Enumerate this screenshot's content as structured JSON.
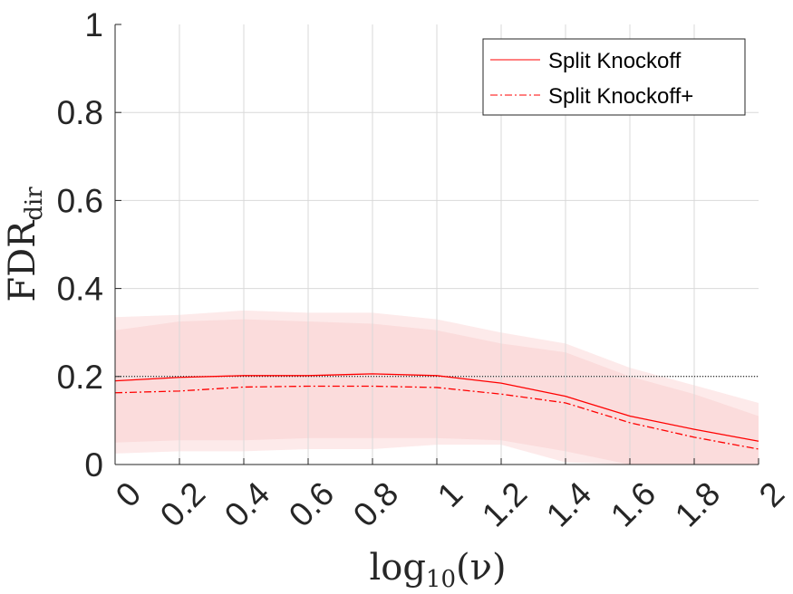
{
  "chart_data": {
    "type": "line",
    "title": "",
    "xlabel": "log10(ν)",
    "xlabel_parts": {
      "base": "log",
      "sub": "10",
      "arg": "(ν)"
    },
    "ylabel": "FDR_dir",
    "ylabel_parts": {
      "base": "FDR",
      "sub": "dir"
    },
    "xlim": [
      0,
      2
    ],
    "ylim": [
      0,
      1
    ],
    "grid": true,
    "legend_position": "top-right",
    "x_ticks": [
      0,
      0.2,
      0.4,
      0.6,
      0.8,
      1,
      1.2,
      1.4,
      1.6,
      1.8,
      2
    ],
    "x_tick_labels": [
      "0",
      "0.2",
      "0.4",
      "0.6",
      "0.8",
      "1",
      "1.2",
      "1.4",
      "1.6",
      "1.8",
      "2"
    ],
    "y_ticks": [
      0,
      0.2,
      0.4,
      0.6,
      0.8,
      1
    ],
    "y_tick_labels": [
      "0",
      "0.2",
      "0.4",
      "0.6",
      "0.8",
      "1"
    ],
    "x": [
      0,
      0.2,
      0.4,
      0.6,
      0.8,
      1,
      1.2,
      1.4,
      1.6,
      1.8,
      2
    ],
    "reference_line": {
      "y": 0.2,
      "style": "dotted",
      "color": "#000000"
    },
    "series": [
      {
        "name": "Split Knockoff",
        "style": "solid",
        "color": "#ff0000",
        "values": [
          0.19,
          0.198,
          0.202,
          0.202,
          0.206,
          0.202,
          0.185,
          0.155,
          0.11,
          0.08,
          0.053
        ],
        "band_upper": [
          0.305,
          0.325,
          0.33,
          0.325,
          0.32,
          0.305,
          0.275,
          0.255,
          0.2,
          0.16,
          0.11
        ],
        "band_lower": [
          0.05,
          0.055,
          0.055,
          0.06,
          0.06,
          0.06,
          0.055,
          0.03,
          0.0,
          0.0,
          0.0
        ],
        "band_color": "#fbdcdc"
      },
      {
        "name": "Split Knockoff+",
        "style": "dashdot",
        "color": "#ff0000",
        "values": [
          0.163,
          0.167,
          0.176,
          0.178,
          0.178,
          0.175,
          0.16,
          0.14,
          0.095,
          0.062,
          0.035
        ],
        "band_upper": [
          0.335,
          0.34,
          0.35,
          0.345,
          0.345,
          0.33,
          0.3,
          0.275,
          0.22,
          0.18,
          0.14
        ],
        "band_lower": [
          0.025,
          0.03,
          0.03,
          0.035,
          0.035,
          0.045,
          0.045,
          0.005,
          0.0,
          0.0,
          0.0
        ],
        "band_color": "#fdeaea"
      }
    ]
  }
}
